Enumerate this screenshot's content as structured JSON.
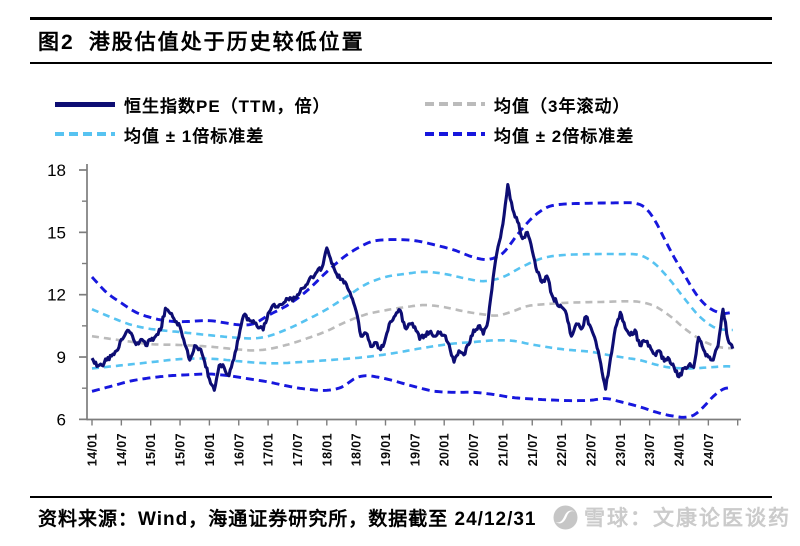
{
  "title": {
    "figure_label": "图2",
    "text": "港股估值处于历史较低位置"
  },
  "legend": [
    {
      "label": "恒生指数PE（TTM，倍）",
      "color": "#0d0d73",
      "style": "solid"
    },
    {
      "label": "均值（3年滚动）",
      "color": "#bbbbbb",
      "style": "dashed"
    },
    {
      "label": "均值 ± 1倍标准差",
      "color": "#57c3f1",
      "style": "dashed"
    },
    {
      "label": "均值 ± 2倍标准差",
      "color": "#1717dd",
      "style": "dashed"
    }
  ],
  "footer": {
    "source": "资料来源：Wind，海通证券研究所，数据截至 24/12/31"
  },
  "watermark": {
    "logo": "snowball-icon",
    "text": "雪球：文康论医谈药",
    "color": "#cbcbcb"
  },
  "colors": {
    "axis": "#7d7d7d",
    "pe": "#0d0d73",
    "mean": "#bbbbbb",
    "band1": "#57c3f1",
    "band2": "#1717dd"
  },
  "chart_data": {
    "type": "line",
    "title": "港股估值处于历史较低位置",
    "x_unit": "months since 2014-01",
    "x_start": "2014-01",
    "x_end": "2024-12",
    "x_tick_labels": [
      "14/01",
      "14/07",
      "15/01",
      "15/07",
      "16/01",
      "16/07",
      "17/01",
      "17/07",
      "18/01",
      "18/07",
      "19/01",
      "19/07",
      "20/01",
      "20/07",
      "21/01",
      "21/07",
      "22/01",
      "22/07",
      "23/01",
      "23/07",
      "24/01",
      "24/07"
    ],
    "y_ticks": [
      6,
      9,
      12,
      15,
      18
    ],
    "y_minor_ticks": [
      7.5,
      10.5,
      13.5,
      16.5
    ],
    "ylim": [
      6,
      18
    ],
    "grid": false,
    "legend_position": "top",
    "series": [
      {
        "name": "恒生指数PE（TTM，倍）",
        "role": "pe",
        "color": "#0d0d73",
        "monthly_values": [
          8.95,
          8.55,
          8.6,
          8.85,
          9.05,
          9.3,
          9.85,
          10.2,
          10.15,
          9.6,
          9.85,
          9.55,
          9.8,
          10.0,
          10.3,
          11.35,
          11.1,
          10.7,
          10.45,
          9.6,
          8.85,
          9.55,
          9.4,
          8.8,
          7.95,
          7.4,
          8.6,
          8.5,
          8.1,
          8.9,
          9.95,
          11.0,
          10.85,
          10.75,
          10.4,
          10.3,
          11.1,
          11.5,
          11.4,
          11.55,
          11.8,
          11.7,
          12.0,
          12.3,
          12.5,
          12.85,
          13.1,
          13.3,
          14.25,
          13.5,
          13.0,
          12.75,
          12.5,
          11.9,
          11.2,
          10.0,
          10.15,
          9.5,
          9.7,
          9.35,
          9.9,
          10.7,
          11.0,
          11.25,
          10.4,
          10.6,
          10.45,
          9.85,
          10.05,
          10.2,
          10.0,
          10.15,
          10.05,
          9.6,
          8.75,
          9.3,
          9.1,
          9.6,
          10.3,
          10.5,
          10.1,
          10.8,
          12.8,
          14.3,
          15.4,
          17.3,
          16.1,
          15.5,
          14.7,
          15.0,
          14.1,
          13.1,
          12.6,
          12.9,
          12.0,
          11.6,
          11.4,
          11.05,
          10.0,
          10.6,
          10.35,
          10.95,
          10.4,
          9.75,
          8.7,
          7.45,
          8.95,
          10.4,
          11.15,
          10.4,
          10.05,
          10.3,
          9.55,
          9.75,
          9.55,
          9.15,
          9.3,
          8.8,
          8.9,
          8.5,
          8.05,
          8.45,
          8.6,
          8.5,
          9.95,
          9.35,
          9.0,
          8.85,
          9.55,
          11.3,
          9.85,
          9.4
        ]
      },
      {
        "name": "均值（3年滚动）",
        "role": "mean",
        "color": "#bbbbbb",
        "keypoints": [
          [
            0,
            10.0
          ],
          [
            6,
            9.8
          ],
          [
            12,
            9.62
          ],
          [
            18,
            9.58
          ],
          [
            24,
            9.5
          ],
          [
            30,
            9.36
          ],
          [
            33,
            9.32
          ],
          [
            36,
            9.38
          ],
          [
            40,
            9.6
          ],
          [
            44,
            9.9
          ],
          [
            48,
            10.25
          ],
          [
            52,
            10.7
          ],
          [
            56,
            11.05
          ],
          [
            60,
            11.25
          ],
          [
            64,
            11.4
          ],
          [
            68,
            11.5
          ],
          [
            72,
            11.4
          ],
          [
            76,
            11.2
          ],
          [
            80,
            11.05
          ],
          [
            83,
            11.0
          ],
          [
            86,
            11.2
          ],
          [
            89,
            11.45
          ],
          [
            93,
            11.55
          ],
          [
            98,
            11.62
          ],
          [
            104,
            11.65
          ],
          [
            109,
            11.68
          ],
          [
            112,
            11.65
          ],
          [
            115,
            11.45
          ],
          [
            118,
            11.0
          ],
          [
            121,
            10.4
          ],
          [
            124,
            9.9
          ],
          [
            127,
            9.55
          ],
          [
            129,
            9.45
          ],
          [
            131,
            9.42
          ]
        ]
      },
      {
        "name": "均值+1倍标准差",
        "role": "plus1",
        "color": "#57c3f1",
        "keypoints": [
          [
            0,
            11.3
          ],
          [
            4,
            10.9
          ],
          [
            8,
            10.55
          ],
          [
            12,
            10.35
          ],
          [
            18,
            10.2
          ],
          [
            24,
            10.05
          ],
          [
            30,
            9.92
          ],
          [
            33,
            9.9
          ],
          [
            36,
            10.0
          ],
          [
            40,
            10.35
          ],
          [
            44,
            10.8
          ],
          [
            48,
            11.3
          ],
          [
            52,
            11.9
          ],
          [
            56,
            12.5
          ],
          [
            60,
            12.85
          ],
          [
            64,
            13.0
          ],
          [
            68,
            13.1
          ],
          [
            72,
            13.0
          ],
          [
            76,
            12.8
          ],
          [
            80,
            12.65
          ],
          [
            84,
            12.85
          ],
          [
            88,
            13.35
          ],
          [
            92,
            13.75
          ],
          [
            96,
            13.9
          ],
          [
            102,
            13.95
          ],
          [
            108,
            13.95
          ],
          [
            112,
            13.9
          ],
          [
            115,
            13.5
          ],
          [
            118,
            12.75
          ],
          [
            121,
            11.85
          ],
          [
            124,
            11.0
          ],
          [
            127,
            10.45
          ],
          [
            129,
            10.32
          ],
          [
            131,
            10.3
          ]
        ]
      },
      {
        "name": "均值-1倍标准差",
        "role": "minus1",
        "color": "#57c3f1",
        "keypoints": [
          [
            0,
            8.45
          ],
          [
            6,
            8.6
          ],
          [
            12,
            8.75
          ],
          [
            18,
            8.9
          ],
          [
            24,
            8.92
          ],
          [
            30,
            8.8
          ],
          [
            34,
            8.72
          ],
          [
            38,
            8.7
          ],
          [
            44,
            8.78
          ],
          [
            50,
            8.88
          ],
          [
            56,
            9.0
          ],
          [
            62,
            9.2
          ],
          [
            68,
            9.45
          ],
          [
            74,
            9.65
          ],
          [
            78,
            9.72
          ],
          [
            82,
            9.8
          ],
          [
            86,
            9.78
          ],
          [
            90,
            9.6
          ],
          [
            96,
            9.38
          ],
          [
            102,
            9.25
          ],
          [
            105,
            9.12
          ],
          [
            108,
            9.0
          ],
          [
            112,
            8.85
          ],
          [
            115,
            8.65
          ],
          [
            118,
            8.5
          ],
          [
            122,
            8.45
          ],
          [
            126,
            8.5
          ],
          [
            129,
            8.55
          ],
          [
            131,
            8.55
          ]
        ]
      },
      {
        "name": "均值+2倍标准差",
        "role": "plus2",
        "color": "#1717dd",
        "keypoints": [
          [
            0,
            12.85
          ],
          [
            3,
            12.1
          ],
          [
            6,
            11.6
          ],
          [
            9,
            11.15
          ],
          [
            12,
            10.9
          ],
          [
            15,
            10.75
          ],
          [
            18,
            10.7
          ],
          [
            24,
            10.75
          ],
          [
            27,
            10.65
          ],
          [
            30,
            10.55
          ],
          [
            33,
            10.6
          ],
          [
            36,
            11.0
          ],
          [
            40,
            11.5
          ],
          [
            44,
            12.2
          ],
          [
            48,
            13.1
          ],
          [
            52,
            13.9
          ],
          [
            56,
            14.45
          ],
          [
            58,
            14.6
          ],
          [
            62,
            14.65
          ],
          [
            66,
            14.6
          ],
          [
            70,
            14.4
          ],
          [
            74,
            14.15
          ],
          [
            78,
            13.8
          ],
          [
            81,
            13.7
          ],
          [
            84,
            14.0
          ],
          [
            87,
            14.9
          ],
          [
            90,
            15.7
          ],
          [
            93,
            16.2
          ],
          [
            96,
            16.35
          ],
          [
            102,
            16.4
          ],
          [
            108,
            16.42
          ],
          [
            111,
            16.4
          ],
          [
            113,
            16.2
          ],
          [
            115,
            15.6
          ],
          [
            117,
            14.7
          ],
          [
            119,
            13.8
          ],
          [
            121,
            13.0
          ],
          [
            123,
            12.2
          ],
          [
            125,
            11.6
          ],
          [
            127,
            11.25
          ],
          [
            129,
            11.1
          ],
          [
            131,
            11.15
          ]
        ]
      },
      {
        "name": "均值-2倍标准差",
        "role": "minus2",
        "color": "#1717dd",
        "keypoints": [
          [
            0,
            7.35
          ],
          [
            4,
            7.6
          ],
          [
            8,
            7.85
          ],
          [
            12,
            8.0
          ],
          [
            16,
            8.1
          ],
          [
            20,
            8.15
          ],
          [
            24,
            8.18
          ],
          [
            28,
            8.1
          ],
          [
            32,
            7.95
          ],
          [
            36,
            7.8
          ],
          [
            40,
            7.6
          ],
          [
            44,
            7.45
          ],
          [
            48,
            7.4
          ],
          [
            51,
            7.55
          ],
          [
            54,
            8.0
          ],
          [
            56,
            8.1
          ],
          [
            58,
            8.05
          ],
          [
            61,
            7.9
          ],
          [
            64,
            7.7
          ],
          [
            68,
            7.45
          ],
          [
            70,
            7.35
          ],
          [
            74,
            7.3
          ],
          [
            78,
            7.3
          ],
          [
            82,
            7.2
          ],
          [
            86,
            7.05
          ],
          [
            90,
            6.98
          ],
          [
            94,
            6.93
          ],
          [
            98,
            6.9
          ],
          [
            102,
            6.92
          ],
          [
            105,
            7.0
          ],
          [
            108,
            6.85
          ],
          [
            112,
            6.6
          ],
          [
            116,
            6.3
          ],
          [
            119,
            6.15
          ],
          [
            121,
            6.1
          ],
          [
            123,
            6.2
          ],
          [
            125,
            6.6
          ],
          [
            127,
            7.1
          ],
          [
            129,
            7.45
          ],
          [
            131,
            7.55
          ]
        ]
      }
    ]
  }
}
